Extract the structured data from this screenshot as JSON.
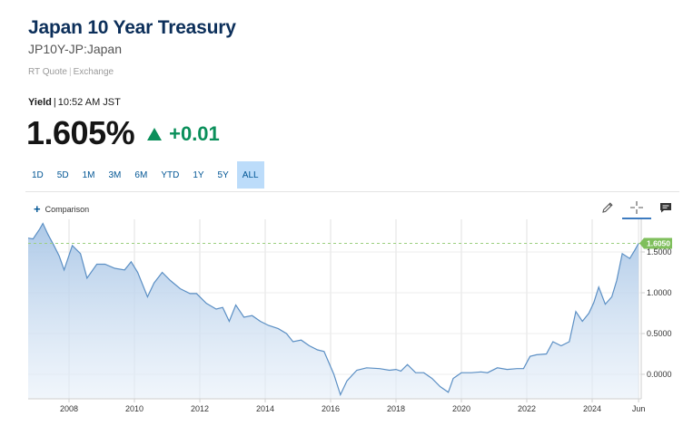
{
  "header": {
    "title": "Japan 10 Year Treasury",
    "symbol": "JP10Y-JP:Japan",
    "quote_type": "RT Quote",
    "exchange": "Exchange"
  },
  "quote": {
    "label": "Yield",
    "time": "10:52 AM JST",
    "price": "1.605%",
    "change": "+0.01",
    "direction": "up"
  },
  "ranges": [
    {
      "label": "1D",
      "active": false
    },
    {
      "label": "5D",
      "active": false
    },
    {
      "label": "1M",
      "active": false
    },
    {
      "label": "3M",
      "active": false
    },
    {
      "label": "6M",
      "active": false
    },
    {
      "label": "YTD",
      "active": false
    },
    {
      "label": "1Y",
      "active": false
    },
    {
      "label": "5Y",
      "active": false
    },
    {
      "label": "ALL",
      "active": true
    }
  ],
  "toolbar": {
    "comparison_label": "Comparison",
    "tools": [
      "pencil-icon",
      "crosshair-icon",
      "comment-icon"
    ]
  },
  "colors": {
    "title": "#0c2f5a",
    "up": "#0a8f5a",
    "line": "#5b8fc4",
    "current_badge": "#7fbf5c"
  },
  "chart_data": {
    "type": "area",
    "title": "",
    "xlabel": "",
    "ylabel": "",
    "xlim": [
      2006.75,
      2025.5
    ],
    "ylim": [
      -0.3,
      1.9
    ],
    "x_ticks": [
      "2008",
      "2010",
      "2012",
      "2014",
      "2016",
      "2018",
      "2020",
      "2022",
      "2024",
      "Jun"
    ],
    "x_tick_values": [
      2008,
      2010,
      2012,
      2014,
      2016,
      2018,
      2020,
      2022,
      2024,
      2025.42
    ],
    "y_ticks": [
      "1.5000",
      "1.0000",
      "0.5000",
      "0.0000"
    ],
    "y_tick_values": [
      1.5,
      1.0,
      0.5,
      0.0
    ],
    "current_value_label": "1.6050",
    "current_value": 1.605,
    "grid": true,
    "points": [
      [
        2006.75,
        1.67
      ],
      [
        2006.9,
        1.66
      ],
      [
        2007.1,
        1.78
      ],
      [
        2007.2,
        1.85
      ],
      [
        2007.35,
        1.72
      ],
      [
        2007.55,
        1.57
      ],
      [
        2007.7,
        1.45
      ],
      [
        2007.85,
        1.28
      ],
      [
        2008.1,
        1.58
      ],
      [
        2008.35,
        1.48
      ],
      [
        2008.55,
        1.18
      ],
      [
        2008.85,
        1.35
      ],
      [
        2009.1,
        1.35
      ],
      [
        2009.4,
        1.3
      ],
      [
        2009.7,
        1.28
      ],
      [
        2009.9,
        1.38
      ],
      [
        2010.1,
        1.25
      ],
      [
        2010.4,
        0.95
      ],
      [
        2010.6,
        1.12
      ],
      [
        2010.85,
        1.25
      ],
      [
        2011.1,
        1.15
      ],
      [
        2011.4,
        1.05
      ],
      [
        2011.7,
        0.99
      ],
      [
        2011.9,
        0.99
      ],
      [
        2012.2,
        0.87
      ],
      [
        2012.5,
        0.8
      ],
      [
        2012.7,
        0.82
      ],
      [
        2012.9,
        0.65
      ],
      [
        2013.1,
        0.85
      ],
      [
        2013.35,
        0.7
      ],
      [
        2013.6,
        0.72
      ],
      [
        2013.85,
        0.65
      ],
      [
        2014.1,
        0.6
      ],
      [
        2014.4,
        0.56
      ],
      [
        2014.65,
        0.5
      ],
      [
        2014.85,
        0.4
      ],
      [
        2015.1,
        0.42
      ],
      [
        2015.35,
        0.35
      ],
      [
        2015.6,
        0.3
      ],
      [
        2015.8,
        0.28
      ],
      [
        2016.1,
        0.0
      ],
      [
        2016.3,
        -0.25
      ],
      [
        2016.5,
        -0.08
      ],
      [
        2016.8,
        0.05
      ],
      [
        2017.1,
        0.08
      ],
      [
        2017.5,
        0.07
      ],
      [
        2017.8,
        0.05
      ],
      [
        2018.0,
        0.06
      ],
      [
        2018.15,
        0.04
      ],
      [
        2018.35,
        0.12
      ],
      [
        2018.6,
        0.02
      ],
      [
        2018.85,
        0.02
      ],
      [
        2019.1,
        -0.05
      ],
      [
        2019.35,
        -0.15
      ],
      [
        2019.6,
        -0.22
      ],
      [
        2019.75,
        -0.05
      ],
      [
        2020.0,
        0.02
      ],
      [
        2020.3,
        0.02
      ],
      [
        2020.6,
        0.03
      ],
      [
        2020.8,
        0.02
      ],
      [
        2021.1,
        0.08
      ],
      [
        2021.4,
        0.06
      ],
      [
        2021.7,
        0.07
      ],
      [
        2021.9,
        0.07
      ],
      [
        2022.1,
        0.22
      ],
      [
        2022.3,
        0.24
      ],
      [
        2022.6,
        0.25
      ],
      [
        2022.8,
        0.4
      ],
      [
        2023.05,
        0.35
      ],
      [
        2023.3,
        0.4
      ],
      [
        2023.5,
        0.77
      ],
      [
        2023.7,
        0.65
      ],
      [
        2023.9,
        0.75
      ],
      [
        2024.05,
        0.88
      ],
      [
        2024.2,
        1.07
      ],
      [
        2024.4,
        0.86
      ],
      [
        2024.6,
        0.95
      ],
      [
        2024.75,
        1.15
      ],
      [
        2024.92,
        1.48
      ],
      [
        2025.15,
        1.42
      ],
      [
        2025.3,
        1.52
      ],
      [
        2025.42,
        1.605
      ]
    ]
  }
}
